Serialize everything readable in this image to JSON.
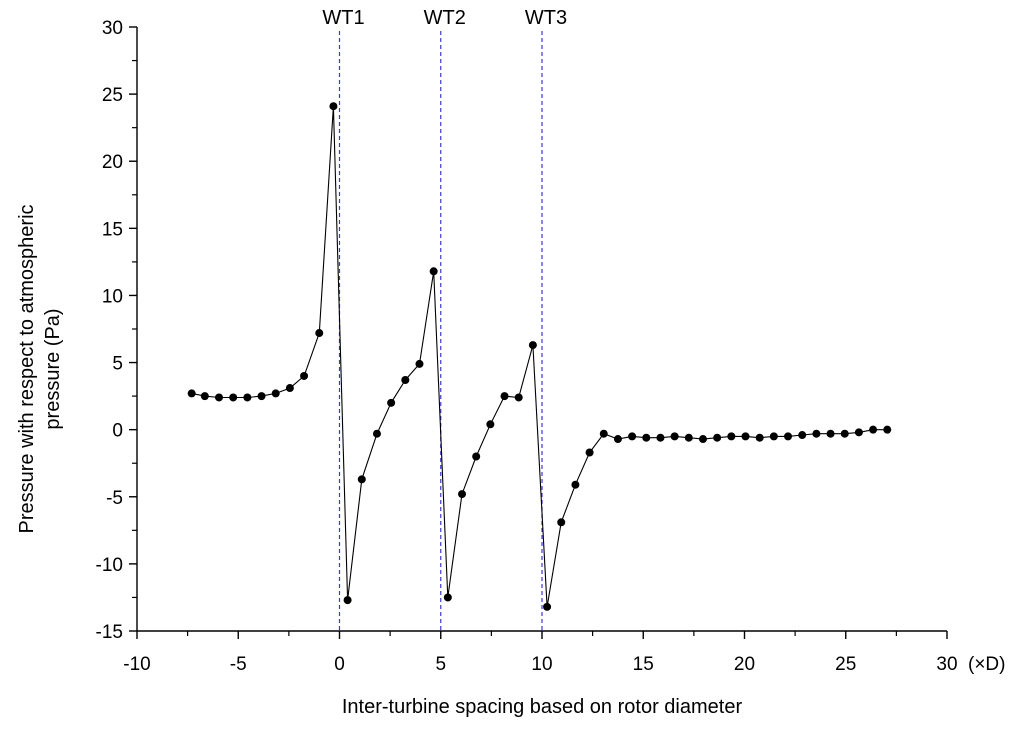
{
  "chart_data": {
    "type": "line",
    "title": "",
    "xlabel": "Inter-turbine spacing based on rotor diameter",
    "x_unit": "(×D)",
    "ylabel": [
      "Pressure with respect to atmospheric",
      "pressure (Pa)"
    ],
    "xlim": [
      -10,
      30
    ],
    "ylim": [
      -15,
      30
    ],
    "xticks": [
      -10,
      -5,
      0,
      5,
      10,
      15,
      20,
      25,
      30
    ],
    "yticks": [
      -15,
      -10,
      -5,
      0,
      5,
      10,
      15,
      20,
      25,
      30
    ],
    "grid": false,
    "turbines": [
      {
        "label": "WT1",
        "x": 0
      },
      {
        "label": "WT2",
        "x": 5
      },
      {
        "label": "WT3",
        "x": 10
      }
    ],
    "series": [
      {
        "name": "pressure",
        "points": [
          [
            -7.3,
            2.7
          ],
          [
            -6.65,
            2.5
          ],
          [
            -5.95,
            2.4
          ],
          [
            -5.25,
            2.4
          ],
          [
            -4.55,
            2.4
          ],
          [
            -3.85,
            2.5
          ],
          [
            -3.15,
            2.7
          ],
          [
            -2.45,
            3.1
          ],
          [
            -1.75,
            4.0
          ],
          [
            -1.0,
            7.2
          ],
          [
            -0.3,
            24.1
          ],
          [
            0.4,
            -12.7
          ],
          [
            1.1,
            -3.7
          ],
          [
            1.85,
            -0.3
          ],
          [
            2.55,
            2.0
          ],
          [
            3.25,
            3.7
          ],
          [
            3.95,
            4.9
          ],
          [
            4.65,
            11.8
          ],
          [
            5.35,
            -12.5
          ],
          [
            6.05,
            -4.8
          ],
          [
            6.75,
            -2.0
          ],
          [
            7.45,
            0.4
          ],
          [
            8.15,
            2.5
          ],
          [
            8.85,
            2.4
          ],
          [
            9.55,
            6.3
          ],
          [
            10.25,
            -13.2
          ],
          [
            10.95,
            -6.9
          ],
          [
            11.65,
            -4.1
          ],
          [
            12.35,
            -1.7
          ],
          [
            13.05,
            -0.3
          ],
          [
            13.75,
            -0.7
          ],
          [
            14.45,
            -0.5
          ],
          [
            15.15,
            -0.6
          ],
          [
            15.85,
            -0.6
          ],
          [
            16.55,
            -0.5
          ],
          [
            17.25,
            -0.6
          ],
          [
            17.95,
            -0.7
          ],
          [
            18.65,
            -0.6
          ],
          [
            19.35,
            -0.5
          ],
          [
            20.05,
            -0.5
          ],
          [
            20.75,
            -0.6
          ],
          [
            21.45,
            -0.5
          ],
          [
            22.15,
            -0.5
          ],
          [
            22.85,
            -0.4
          ],
          [
            23.55,
            -0.3
          ],
          [
            24.25,
            -0.3
          ],
          [
            24.95,
            -0.3
          ],
          [
            25.65,
            -0.2
          ],
          [
            26.35,
            0.0
          ],
          [
            27.05,
            0.0
          ]
        ]
      }
    ]
  }
}
